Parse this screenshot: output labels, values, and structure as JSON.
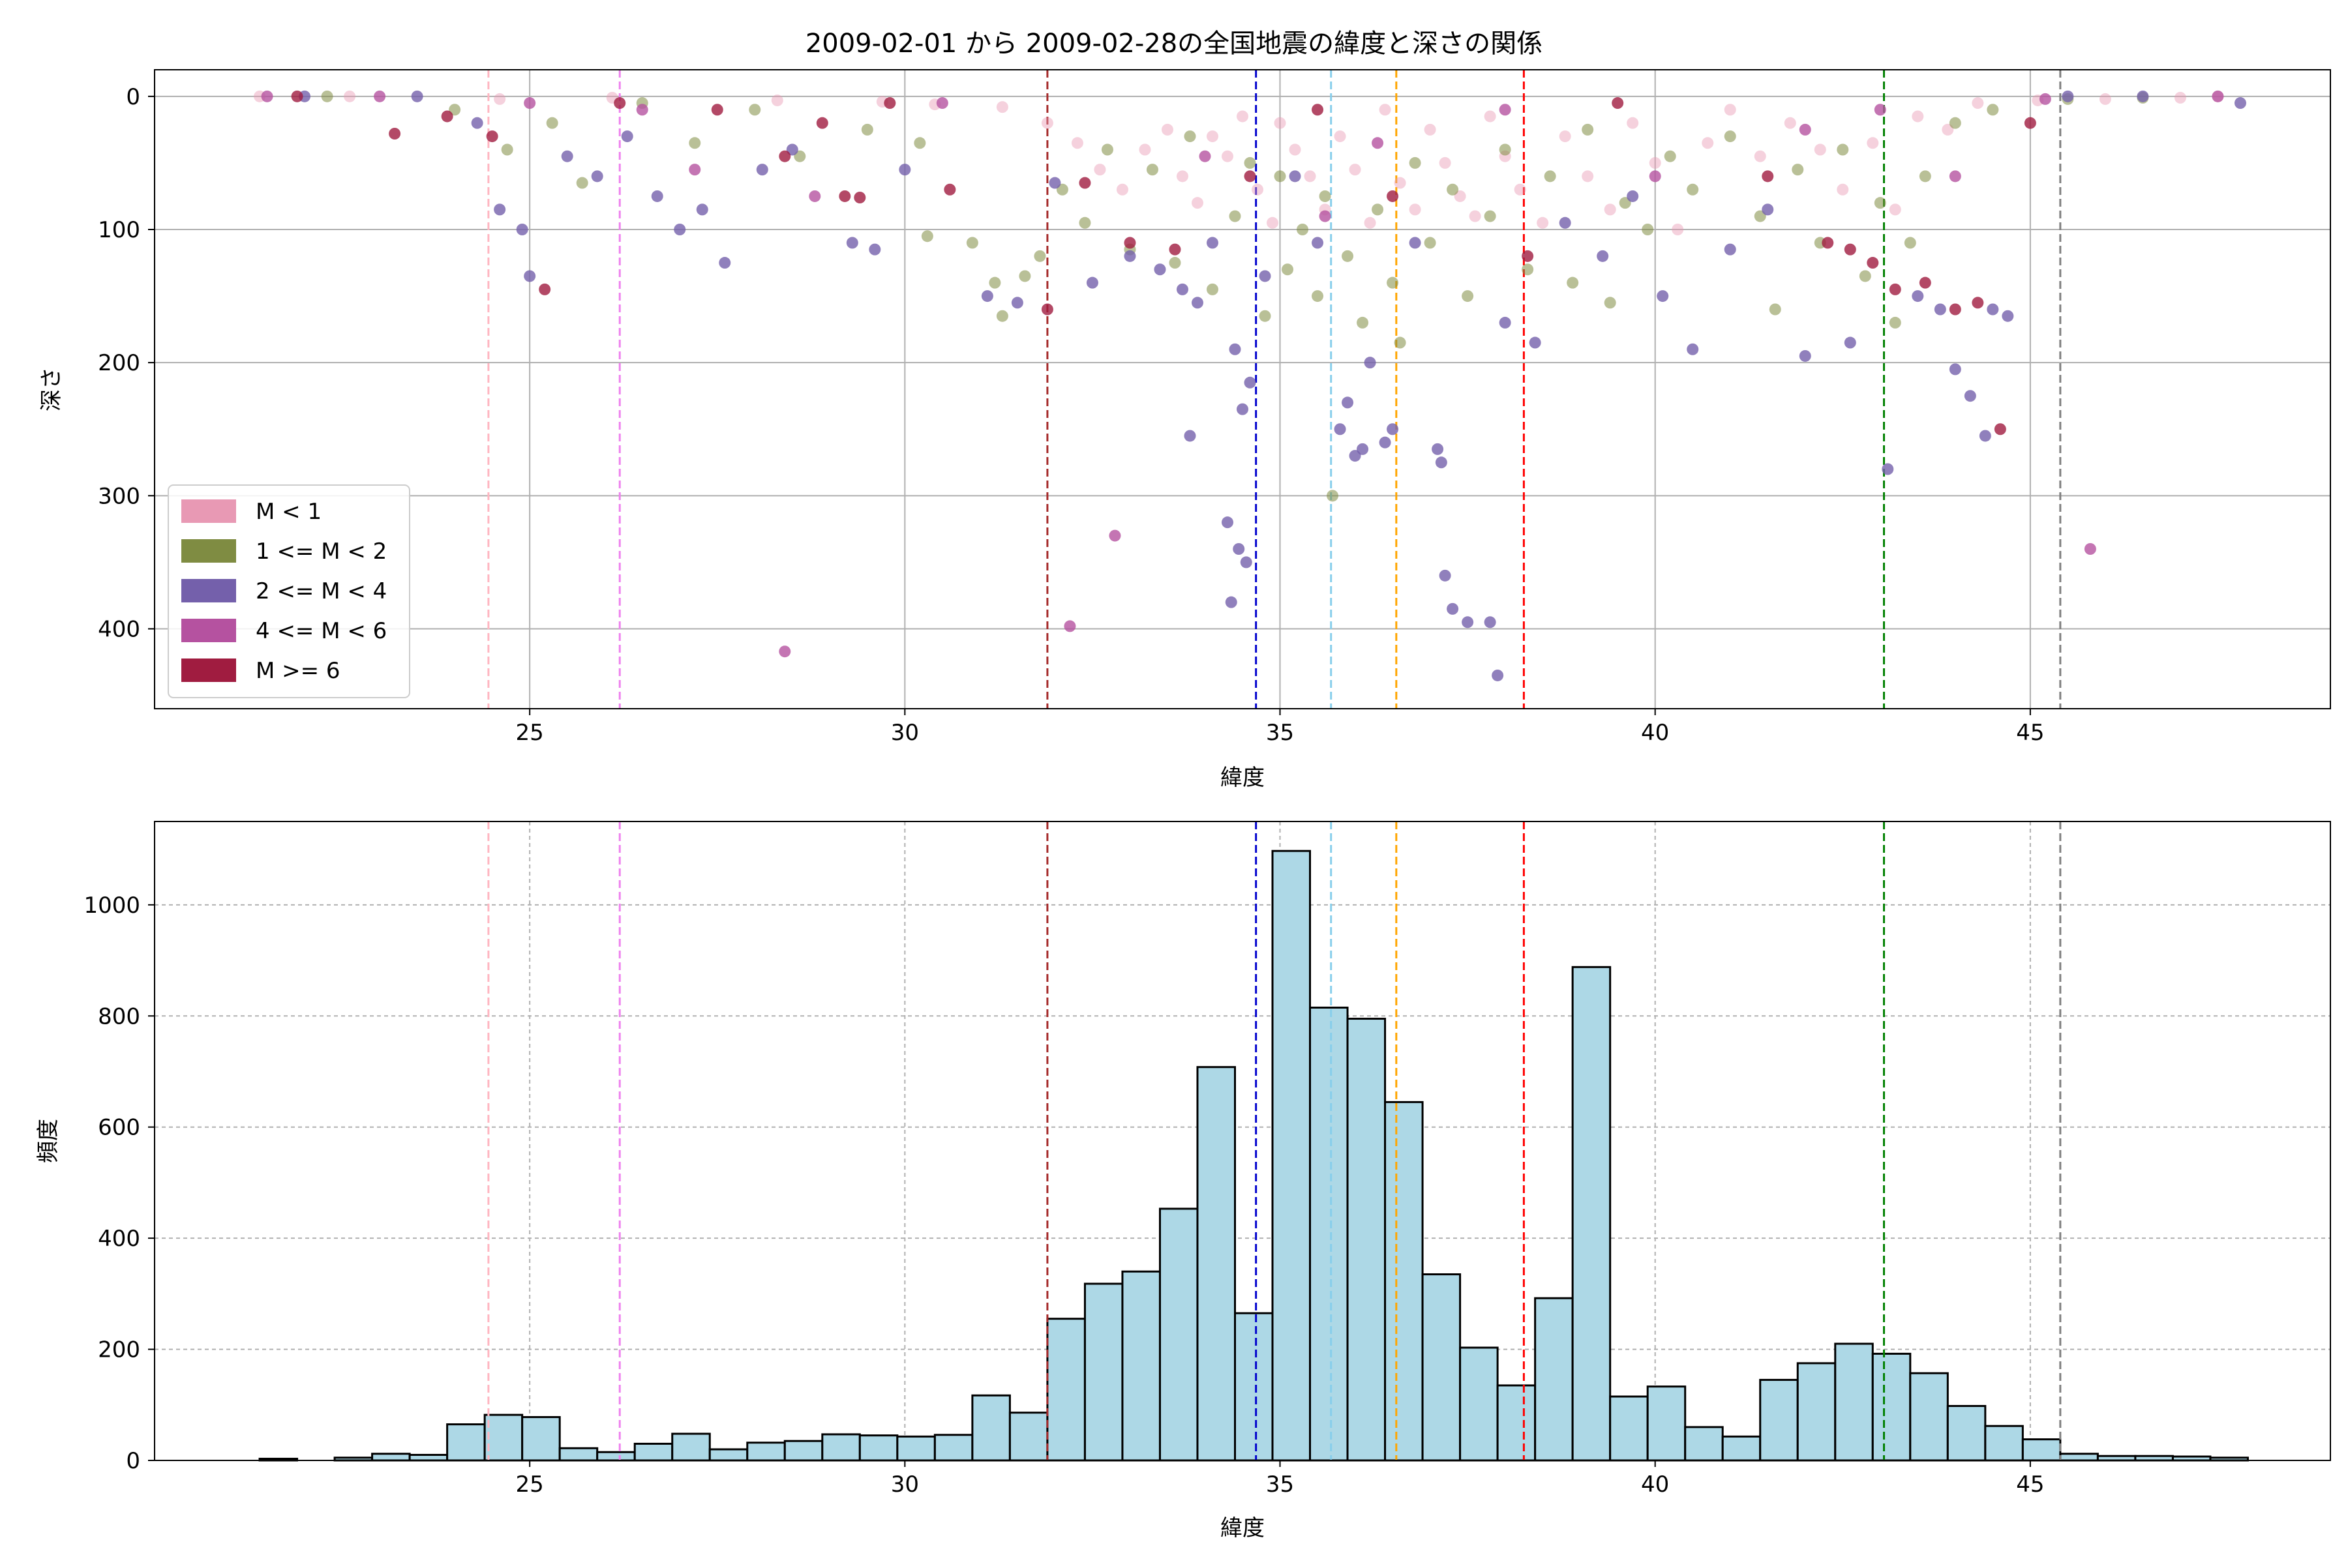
{
  "title": "2009-02-01 から 2009-02-28の全国地震の緯度と深さの関係",
  "chart_data": [
    {
      "type": "scatter",
      "xlabel": "緯度",
      "ylabel": "深さ",
      "xlim": [
        20.0,
        49.0
      ],
      "ylim": [
        460,
        -20
      ],
      "y_inverted": true,
      "xticks": [
        25,
        30,
        35,
        40,
        45
      ],
      "yticks": [
        0,
        100,
        200,
        300,
        400
      ],
      "grid": true,
      "legend_position": "lower-left",
      "series": [
        {
          "name": "M < 1",
          "color": "#e899b4",
          "points": [
            [
              21.4,
              0
            ],
            [
              22.6,
              0
            ],
            [
              24.6,
              2
            ],
            [
              26.1,
              1
            ],
            [
              28.3,
              3
            ],
            [
              29.7,
              4
            ],
            [
              30.4,
              6
            ],
            [
              31.3,
              8
            ],
            [
              31.9,
              20
            ],
            [
              32.3,
              35
            ],
            [
              32.6,
              55
            ],
            [
              32.9,
              70
            ],
            [
              33.2,
              40
            ],
            [
              33.5,
              25
            ],
            [
              33.7,
              60
            ],
            [
              33.9,
              80
            ],
            [
              34.1,
              30
            ],
            [
              34.3,
              45
            ],
            [
              34.5,
              15
            ],
            [
              34.7,
              70
            ],
            [
              34.9,
              95
            ],
            [
              35.0,
              20
            ],
            [
              35.2,
              40
            ],
            [
              35.4,
              60
            ],
            [
              35.6,
              85
            ],
            [
              35.8,
              30
            ],
            [
              36.0,
              55
            ],
            [
              36.2,
              95
            ],
            [
              36.4,
              10
            ],
            [
              36.6,
              65
            ],
            [
              36.8,
              85
            ],
            [
              37.0,
              25
            ],
            [
              37.2,
              50
            ],
            [
              37.4,
              75
            ],
            [
              37.6,
              90
            ],
            [
              37.8,
              15
            ],
            [
              38.0,
              45
            ],
            [
              38.2,
              70
            ],
            [
              38.5,
              95
            ],
            [
              38.8,
              30
            ],
            [
              39.1,
              60
            ],
            [
              39.4,
              85
            ],
            [
              39.7,
              20
            ],
            [
              40.0,
              50
            ],
            [
              40.3,
              100
            ],
            [
              40.7,
              35
            ],
            [
              41.0,
              10
            ],
            [
              41.4,
              45
            ],
            [
              41.8,
              20
            ],
            [
              42.2,
              40
            ],
            [
              42.5,
              70
            ],
            [
              42.9,
              35
            ],
            [
              43.2,
              85
            ],
            [
              43.5,
              15
            ],
            [
              43.9,
              25
            ],
            [
              44.3,
              5
            ],
            [
              45.1,
              3
            ],
            [
              46.0,
              2
            ],
            [
              47.0,
              1
            ],
            [
              47.5,
              0
            ]
          ]
        },
        {
          "name": "1 <= M < 2",
          "color": "#7f8c42",
          "points": [
            [
              22.3,
              0
            ],
            [
              24.0,
              10
            ],
            [
              24.7,
              40
            ],
            [
              25.3,
              20
            ],
            [
              25.7,
              65
            ],
            [
              26.5,
              5
            ],
            [
              27.2,
              35
            ],
            [
              28.0,
              10
            ],
            [
              28.6,
              45
            ],
            [
              29.5,
              25
            ],
            [
              30.2,
              35
            ],
            [
              30.3,
              105
            ],
            [
              30.9,
              110
            ],
            [
              31.2,
              140
            ],
            [
              31.3,
              165
            ],
            [
              31.6,
              135
            ],
            [
              31.8,
              120
            ],
            [
              32.1,
              70
            ],
            [
              32.4,
              95
            ],
            [
              32.7,
              40
            ],
            [
              33.0,
              115
            ],
            [
              33.3,
              55
            ],
            [
              33.6,
              125
            ],
            [
              33.8,
              30
            ],
            [
              34.1,
              145
            ],
            [
              34.4,
              90
            ],
            [
              34.6,
              50
            ],
            [
              34.8,
              165
            ],
            [
              35.0,
              60
            ],
            [
              35.1,
              130
            ],
            [
              35.3,
              100
            ],
            [
              35.5,
              150
            ],
            [
              35.6,
              75
            ],
            [
              35.7,
              300
            ],
            [
              35.9,
              120
            ],
            [
              36.1,
              170
            ],
            [
              36.3,
              85
            ],
            [
              36.5,
              140
            ],
            [
              36.6,
              185
            ],
            [
              36.8,
              50
            ],
            [
              37.0,
              110
            ],
            [
              37.3,
              70
            ],
            [
              37.5,
              150
            ],
            [
              37.8,
              90
            ],
            [
              38.0,
              40
            ],
            [
              38.3,
              130
            ],
            [
              38.6,
              60
            ],
            [
              38.9,
              140
            ],
            [
              39.1,
              25
            ],
            [
              39.4,
              155
            ],
            [
              39.6,
              80
            ],
            [
              39.9,
              100
            ],
            [
              40.2,
              45
            ],
            [
              40.5,
              70
            ],
            [
              41.0,
              30
            ],
            [
              41.4,
              90
            ],
            [
              41.6,
              160
            ],
            [
              41.9,
              55
            ],
            [
              42.2,
              110
            ],
            [
              42.5,
              40
            ],
            [
              42.8,
              135
            ],
            [
              43.0,
              80
            ],
            [
              43.2,
              170
            ],
            [
              43.4,
              110
            ],
            [
              43.6,
              60
            ],
            [
              44.0,
              20
            ],
            [
              44.5,
              10
            ],
            [
              45.5,
              2
            ],
            [
              46.5,
              1
            ]
          ]
        },
        {
          "name": "2 <= M < 4",
          "color": "#7460ab",
          "points": [
            [
              22.0,
              0
            ],
            [
              23.5,
              0
            ],
            [
              24.3,
              20
            ],
            [
              24.6,
              85
            ],
            [
              24.9,
              100
            ],
            [
              25.0,
              135
            ],
            [
              25.5,
              45
            ],
            [
              25.9,
              60
            ],
            [
              26.3,
              30
            ],
            [
              26.7,
              75
            ],
            [
              27.0,
              100
            ],
            [
              27.3,
              85
            ],
            [
              27.6,
              125
            ],
            [
              28.1,
              55
            ],
            [
              28.5,
              40
            ],
            [
              29.3,
              110
            ],
            [
              29.6,
              115
            ],
            [
              30.0,
              55
            ],
            [
              31.1,
              150
            ],
            [
              31.5,
              155
            ],
            [
              32.0,
              65
            ],
            [
              32.5,
              140
            ],
            [
              33.0,
              120
            ],
            [
              33.4,
              130
            ],
            [
              33.7,
              145
            ],
            [
              33.8,
              255
            ],
            [
              33.9,
              155
            ],
            [
              34.1,
              110
            ],
            [
              34.3,
              320
            ],
            [
              34.35,
              380
            ],
            [
              34.4,
              190
            ],
            [
              34.45,
              340
            ],
            [
              34.5,
              235
            ],
            [
              34.55,
              350
            ],
            [
              34.6,
              215
            ],
            [
              34.8,
              135
            ],
            [
              35.2,
              60
            ],
            [
              35.5,
              110
            ],
            [
              35.8,
              250
            ],
            [
              35.9,
              230
            ],
            [
              36.0,
              270
            ],
            [
              36.1,
              265
            ],
            [
              36.2,
              200
            ],
            [
              36.4,
              260
            ],
            [
              36.5,
              250
            ],
            [
              36.8,
              110
            ],
            [
              37.1,
              265
            ],
            [
              37.15,
              275
            ],
            [
              37.2,
              360
            ],
            [
              37.3,
              385
            ],
            [
              37.5,
              395
            ],
            [
              37.8,
              395
            ],
            [
              37.9,
              435
            ],
            [
              38.0,
              170
            ],
            [
              38.4,
              185
            ],
            [
              38.8,
              95
            ],
            [
              39.3,
              120
            ],
            [
              39.7,
              75
            ],
            [
              40.1,
              150
            ],
            [
              40.5,
              190
            ],
            [
              41.0,
              115
            ],
            [
              41.5,
              85
            ],
            [
              42.0,
              195
            ],
            [
              42.6,
              185
            ],
            [
              43.1,
              280
            ],
            [
              43.5,
              150
            ],
            [
              43.8,
              160
            ],
            [
              44.0,
              205
            ],
            [
              44.2,
              225
            ],
            [
              44.4,
              255
            ],
            [
              44.5,
              160
            ],
            [
              44.7,
              165
            ],
            [
              45.5,
              0
            ],
            [
              46.5,
              0
            ],
            [
              47.8,
              5
            ]
          ]
        },
        {
          "name": "4 <= M < 6",
          "color": "#b552a0",
          "points": [
            [
              21.5,
              0
            ],
            [
              23.0,
              0
            ],
            [
              25.0,
              5
            ],
            [
              26.5,
              10
            ],
            [
              27.2,
              55
            ],
            [
              28.4,
              417
            ],
            [
              28.8,
              75
            ],
            [
              30.5,
              5
            ],
            [
              32.2,
              398
            ],
            [
              32.8,
              330
            ],
            [
              34.0,
              45
            ],
            [
              35.6,
              90
            ],
            [
              36.3,
              35
            ],
            [
              38.0,
              10
            ],
            [
              40.0,
              60
            ],
            [
              42.0,
              25
            ],
            [
              43.0,
              10
            ],
            [
              44.0,
              60
            ],
            [
              45.2,
              2
            ],
            [
              45.8,
              340
            ],
            [
              47.5,
              0
            ]
          ]
        },
        {
          "name": "M >= 6",
          "color": "#a01c40",
          "points": [
            [
              21.9,
              0
            ],
            [
              23.2,
              28
            ],
            [
              23.9,
              15
            ],
            [
              24.5,
              30
            ],
            [
              25.2,
              145
            ],
            [
              26.2,
              5
            ],
            [
              27.5,
              10
            ],
            [
              28.4,
              45
            ],
            [
              28.9,
              20
            ],
            [
              29.2,
              75
            ],
            [
              29.4,
              76
            ],
            [
              29.8,
              5
            ],
            [
              30.6,
              70
            ],
            [
              31.9,
              160
            ],
            [
              32.4,
              65
            ],
            [
              33.0,
              110
            ],
            [
              33.6,
              115
            ],
            [
              34.6,
              60
            ],
            [
              35.5,
              10
            ],
            [
              36.5,
              75
            ],
            [
              38.3,
              120
            ],
            [
              39.5,
              5
            ],
            [
              41.5,
              60
            ],
            [
              42.3,
              110
            ],
            [
              42.6,
              115
            ],
            [
              42.9,
              125
            ],
            [
              43.2,
              145
            ],
            [
              43.6,
              140
            ],
            [
              44.0,
              160
            ],
            [
              44.3,
              155
            ],
            [
              44.6,
              250
            ],
            [
              45.0,
              20
            ]
          ]
        }
      ]
    },
    {
      "type": "bar",
      "xlabel": "緯度",
      "ylabel": "頻度",
      "xlim": [
        20.0,
        49.0
      ],
      "ylim": [
        0,
        1150
      ],
      "xticks": [
        25,
        30,
        35,
        40,
        45
      ],
      "yticks": [
        0,
        200,
        400,
        600,
        800,
        1000
      ],
      "grid": true,
      "bar_color": "#add8e6",
      "bin_start": 21.4,
      "bin_width": 0.5,
      "values": [
        3,
        0,
        5,
        12,
        10,
        65,
        82,
        78,
        22,
        15,
        30,
        48,
        20,
        32,
        35,
        47,
        45,
        43,
        46,
        117,
        86,
        255,
        318,
        340,
        453,
        708,
        265,
        1097,
        815,
        795,
        645,
        335,
        203,
        135,
        292,
        888,
        115,
        133,
        60,
        43,
        145,
        175,
        210,
        192,
        157,
        98,
        62,
        38,
        12,
        8,
        8,
        7,
        5
      ]
    }
  ],
  "vlines": [
    {
      "x": 24.45,
      "color": "#ffb6c1"
    },
    {
      "x": 26.2,
      "color": "#ee82ee"
    },
    {
      "x": 31.9,
      "color": "#a52a2a"
    },
    {
      "x": 34.68,
      "color": "#0000cd"
    },
    {
      "x": 35.68,
      "color": "#87ceeb"
    },
    {
      "x": 36.55,
      "color": "#ffa500"
    },
    {
      "x": 38.25,
      "color": "#ff0000"
    },
    {
      "x": 43.05,
      "color": "#008000"
    },
    {
      "x": 45.4,
      "color": "#808080"
    }
  ]
}
